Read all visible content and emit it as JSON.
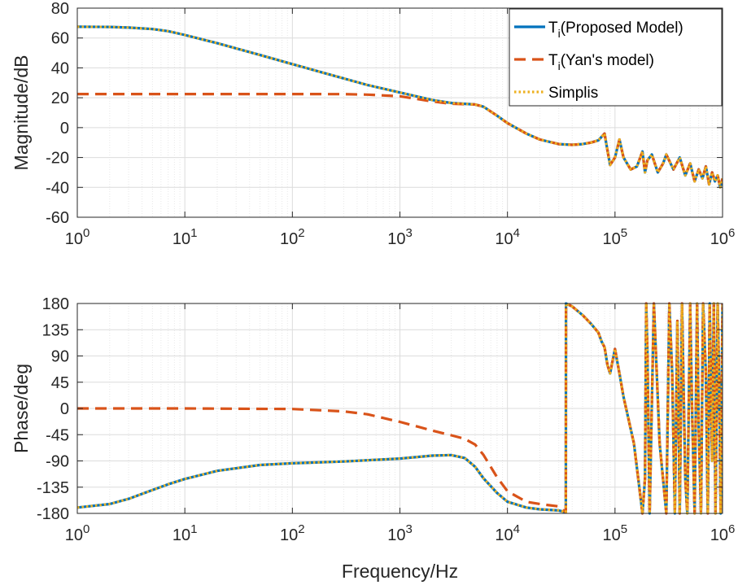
{
  "chart_data": [
    {
      "type": "line",
      "xscale": "log",
      "xlim": [
        1,
        1000000
      ],
      "ylim": [
        -60,
        80
      ],
      "xticks": [
        1,
        10,
        100,
        1000,
        10000,
        100000,
        1000000
      ],
      "xtick_labels": [
        "10^0",
        "10^1",
        "10^2",
        "10^3",
        "10^4",
        "10^5",
        "10^6"
      ],
      "yticks": [
        -60,
        -40,
        -20,
        0,
        20,
        40,
        60,
        80
      ],
      "ytick_labels": [
        "-60",
        "-40",
        "-20",
        "0",
        "20",
        "40",
        "60",
        "80"
      ],
      "xlabel": "",
      "ylabel": "Magnitude/dB",
      "grid": true,
      "legend_position": "top-right",
      "legend": [
        {
          "label_main": "T",
          "label_sub": "i",
          "label_rest": "(Proposed Model)",
          "color": "#0072BD",
          "style": "solid"
        },
        {
          "label_main": "T",
          "label_sub": "i",
          "label_rest": "(Yan's model)",
          "color": "#D95319",
          "style": "dashed"
        },
        {
          "label_main": "Simplis",
          "label_sub": "",
          "label_rest": "",
          "color": "#EDB120",
          "style": "dotted"
        }
      ],
      "series": [
        {
          "name": "Ti(Proposed Model)",
          "color": "#0072BD",
          "style": "solid",
          "x": [
            1,
            2,
            3,
            5,
            7,
            10,
            20,
            50,
            100,
            200,
            500,
            1000,
            2000,
            3000,
            5000,
            6000,
            8000,
            10000,
            15000,
            20000,
            30000,
            40000,
            50000,
            60000,
            70000,
            80000,
            85000,
            90000,
            100000,
            110000,
            120000,
            140000,
            160000,
            180000,
            190000,
            200000,
            220000,
            250000,
            280000,
            300000,
            350000,
            400000,
            450000,
            500000,
            550000,
            600000,
            650000,
            700000,
            750000,
            800000,
            850000,
            900000,
            950000,
            1000000
          ],
          "y": [
            67.5,
            67.4,
            67,
            66,
            64.6,
            62,
            56.5,
            48.6,
            42.5,
            36.5,
            28.5,
            23.5,
            18.5,
            16.5,
            15.5,
            14,
            8,
            3,
            -4,
            -8,
            -11,
            -11.5,
            -11,
            -10,
            -8.5,
            -4,
            -15,
            -25,
            -20,
            -8,
            -20,
            -28,
            -26,
            -16,
            -30,
            -22,
            -18,
            -30,
            -24,
            -18,
            -28,
            -20,
            -32,
            -24,
            -36,
            -28,
            -34,
            -26,
            -38,
            -30,
            -36,
            -32,
            -40,
            -34
          ]
        },
        {
          "name": "Ti(Yan's model)",
          "color": "#D95319",
          "style": "dashed",
          "x": [
            1,
            10,
            100,
            300,
            500,
            1000,
            2000,
            3000,
            5000,
            6000,
            8000,
            10000,
            15000,
            20000,
            30000,
            40000,
            50000,
            60000,
            70000,
            80000,
            85000,
            90000,
            100000,
            110000,
            120000,
            140000,
            160000,
            180000,
            190000,
            200000,
            220000,
            250000,
            280000,
            300000,
            350000,
            400000,
            450000,
            500000,
            550000,
            600000,
            650000,
            700000,
            750000,
            800000,
            850000,
            900000,
            950000,
            1000000
          ],
          "y": [
            22.5,
            22.5,
            22.5,
            22.4,
            22.1,
            21,
            17.5,
            16,
            15.5,
            14,
            8,
            3,
            -4,
            -8,
            -11,
            -11.5,
            -11,
            -10,
            -8.5,
            -4,
            -15,
            -25,
            -20,
            -8,
            -20,
            -28,
            -26,
            -16,
            -30,
            -22,
            -18,
            -30,
            -24,
            -18,
            -28,
            -20,
            -32,
            -24,
            -36,
            -28,
            -34,
            -26,
            -38,
            -30,
            -36,
            -32,
            -40,
            -34
          ]
        },
        {
          "name": "Simplis",
          "color": "#EDB120",
          "style": "dotted",
          "x": [
            1,
            2,
            3,
            5,
            7,
            10,
            20,
            50,
            100,
            200,
            500,
            1000,
            2000,
            3000,
            5000,
            6000,
            8000,
            10000,
            15000,
            20000,
            30000,
            40000,
            50000,
            60000,
            70000,
            80000,
            85000,
            90000,
            100000,
            110000,
            120000,
            140000,
            160000,
            180000,
            190000,
            200000,
            220000,
            250000,
            280000,
            300000,
            350000,
            400000,
            450000,
            500000,
            550000,
            600000,
            650000,
            700000,
            750000,
            800000,
            850000,
            900000,
            950000,
            1000000
          ],
          "y": [
            67.5,
            67.4,
            67,
            66,
            64.6,
            62,
            56.5,
            48.6,
            42.5,
            36.5,
            28.5,
            23.5,
            18.5,
            16.5,
            15.5,
            14,
            8,
            3,
            -4,
            -8,
            -11,
            -11.5,
            -11,
            -10,
            -8.5,
            -4,
            -15,
            -25,
            -20,
            -8,
            -20,
            -28,
            -26,
            -16,
            -30,
            -22,
            -18,
            -30,
            -24,
            -18,
            -28,
            -20,
            -32,
            -24,
            -36,
            -28,
            -34,
            -26,
            -38,
            -30,
            -36,
            -32,
            -40,
            -34
          ]
        }
      ]
    },
    {
      "type": "line",
      "xscale": "log",
      "xlim": [
        1,
        1000000
      ],
      "ylim": [
        -180,
        180
      ],
      "xticks": [
        1,
        10,
        100,
        1000,
        10000,
        100000,
        1000000
      ],
      "xtick_labels": [
        "10^0",
        "10^1",
        "10^2",
        "10^3",
        "10^4",
        "10^5",
        "10^6"
      ],
      "yticks": [
        -180,
        -135,
        -90,
        -45,
        0,
        45,
        90,
        135,
        180
      ],
      "ytick_labels": [
        "-180",
        "-135",
        "-90",
        "-45",
        "0",
        "45",
        "90",
        "135",
        "180"
      ],
      "xlabel": "Frequency/Hz",
      "ylabel": "Phase/deg",
      "grid": true,
      "series": [
        {
          "name": "Ti(Proposed Model)",
          "color": "#0072BD",
          "style": "solid",
          "x": [
            1,
            2,
            3,
            5,
            7,
            10,
            20,
            50,
            100,
            300,
            1000,
            2000,
            3000,
            4000,
            5000,
            6000,
            8000,
            10000,
            15000,
            20000,
            30000,
            34900,
            35000,
            40000,
            50000,
            60000,
            70000,
            75000,
            80000,
            85000,
            90000,
            100000,
            110000,
            120000,
            150000,
            180000,
            190000,
            195000,
            200000,
            210000,
            230000,
            260000,
            300000,
            320000,
            340000,
            360000,
            380000,
            400000,
            420000,
            450000,
            470000,
            500000,
            520000,
            550000,
            580000,
            600000,
            630000,
            660000,
            700000,
            730000,
            760000,
            800000,
            830000,
            860000,
            900000,
            930000,
            960000,
            1000000
          ],
          "y": [
            -170,
            -164,
            -155,
            -140,
            -130,
            -121,
            -107,
            -97,
            -94,
            -91,
            -86,
            -81,
            -80,
            -85,
            -100,
            -120,
            -145,
            -160,
            -170,
            -173,
            -175,
            -178,
            180,
            175,
            160,
            145,
            130,
            115,
            105,
            75,
            60,
            102,
            60,
            20,
            -60,
            -180,
            -120,
            180,
            100,
            -180,
            180,
            -60,
            -180,
            180,
            60,
            -180,
            150,
            -180,
            180,
            -120,
            -180,
            180,
            0,
            -180,
            180,
            -30,
            -180,
            180,
            60,
            -180,
            180,
            -90,
            180,
            -180,
            180,
            45,
            -180,
            180
          ]
        },
        {
          "name": "Ti(Yan's model)",
          "color": "#D95319",
          "style": "dashed",
          "x": [
            1,
            10,
            100,
            300,
            500,
            1000,
            2000,
            3000,
            4000,
            5000,
            6000,
            8000,
            10000,
            15000,
            20000,
            30000,
            34900,
            35000,
            40000,
            50000,
            60000,
            70000,
            75000,
            80000,
            85000,
            90000,
            100000,
            110000,
            120000,
            150000,
            180000,
            190000,
            195000,
            200000,
            210000,
            230000,
            260000,
            300000,
            320000,
            340000,
            360000,
            380000,
            400000,
            420000,
            450000,
            470000,
            500000,
            520000,
            550000,
            580000,
            600000,
            630000,
            660000,
            700000,
            730000,
            760000,
            800000,
            830000,
            860000,
            900000,
            930000,
            960000,
            1000000
          ],
          "y": [
            0,
            0,
            -1,
            -5,
            -10,
            -23,
            -38,
            -46,
            -52,
            -62,
            -80,
            -118,
            -142,
            -160,
            -164,
            -168,
            -178,
            180,
            175,
            160,
            145,
            130,
            115,
            105,
            75,
            60,
            102,
            60,
            20,
            -60,
            -180,
            -120,
            180,
            100,
            -180,
            180,
            -60,
            -180,
            180,
            60,
            -180,
            150,
            -180,
            180,
            -120,
            -180,
            180,
            0,
            -180,
            180,
            -30,
            -180,
            180,
            60,
            -180,
            180,
            -90,
            180,
            -180,
            180,
            45,
            -180,
            180
          ]
        },
        {
          "name": "Simplis",
          "color": "#EDB120",
          "style": "dotted",
          "x": [
            1,
            2,
            3,
            5,
            7,
            10,
            20,
            50,
            100,
            300,
            1000,
            2000,
            3000,
            4000,
            5000,
            6000,
            8000,
            10000,
            15000,
            20000,
            30000,
            34900,
            35000,
            40000,
            50000,
            60000,
            70000,
            75000,
            80000,
            85000,
            90000,
            100000,
            110000,
            120000,
            150000,
            180000,
            190000,
            195000,
            200000,
            210000,
            230000,
            260000,
            300000,
            320000,
            340000,
            360000,
            380000,
            400000,
            420000,
            450000,
            470000,
            500000,
            520000,
            550000,
            580000,
            600000,
            630000,
            660000,
            700000,
            730000,
            760000,
            800000,
            830000,
            860000,
            900000,
            930000,
            960000,
            1000000
          ],
          "y": [
            -170,
            -164,
            -155,
            -140,
            -130,
            -121,
            -107,
            -97,
            -94,
            -91,
            -86,
            -81,
            -80,
            -85,
            -100,
            -120,
            -145,
            -160,
            -170,
            -173,
            -175,
            -178,
            180,
            175,
            160,
            145,
            130,
            115,
            105,
            75,
            60,
            102,
            60,
            20,
            -60,
            -180,
            -120,
            180,
            100,
            -180,
            180,
            -60,
            -180,
            180,
            60,
            -180,
            150,
            -180,
            180,
            -120,
            -180,
            180,
            0,
            -180,
            180,
            -30,
            -180,
            180,
            60,
            -180,
            180,
            -90,
            180,
            -180,
            180,
            45,
            -180,
            180
          ]
        }
      ]
    }
  ]
}
